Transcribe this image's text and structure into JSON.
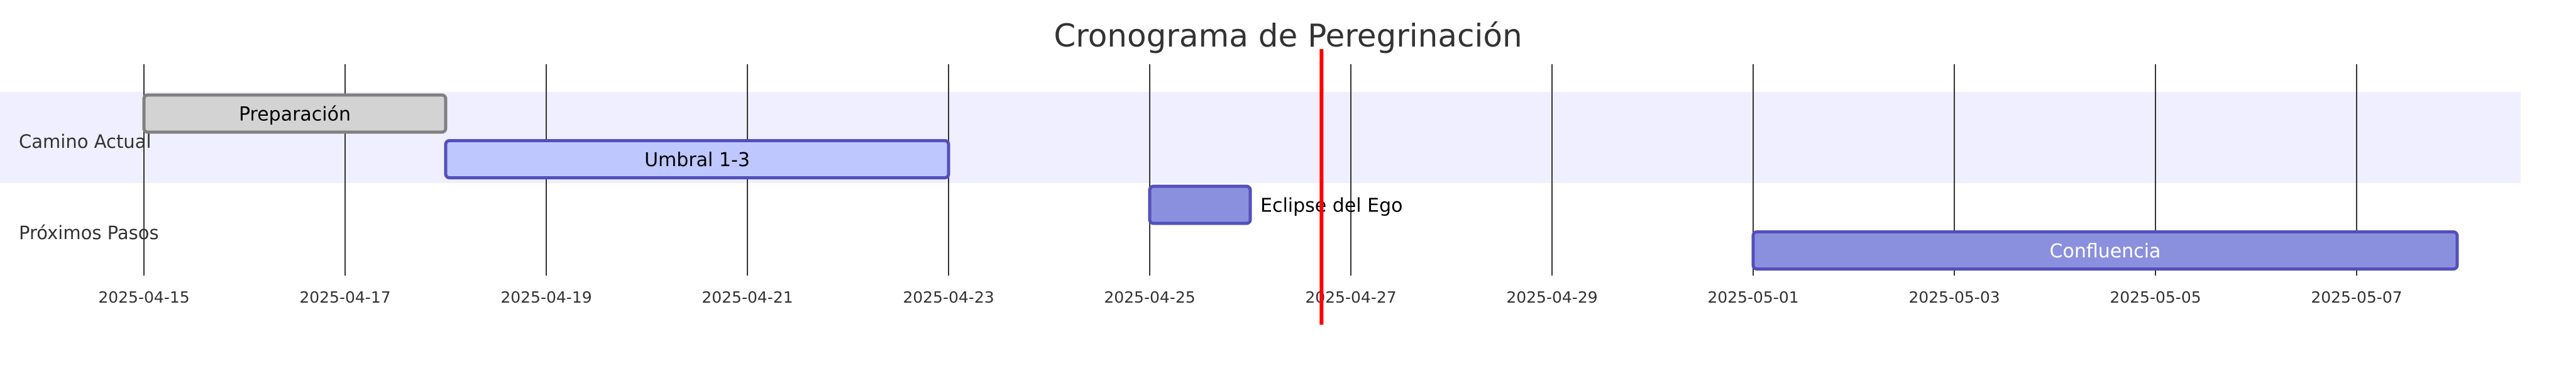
{
  "chart_data": {
    "type": "gantt",
    "title": "Cronograma de Peregrinación",
    "sections": [
      {
        "name": "Camino Actual",
        "tasks": [
          "Preparación",
          "Umbral 1-3"
        ]
      },
      {
        "name": "Próximos Pasos",
        "tasks": [
          "Eclipse del Ego",
          "Confluencia"
        ]
      }
    ],
    "tasks": [
      {
        "name": "Preparación",
        "section": "Camino Actual",
        "start": "2025-04-15",
        "end": "2025-04-18",
        "status": "done",
        "fill": "#d3d3d3",
        "stroke": "#808080",
        "label_color": "#000000",
        "label_position": "inside"
      },
      {
        "name": "Umbral 1-3",
        "section": "Camino Actual",
        "start": "2025-04-18",
        "end": "2025-04-23",
        "status": "active",
        "fill": "#bfc7ff",
        "stroke": "#534fbc",
        "label_color": "#000000",
        "label_position": "inside"
      },
      {
        "name": "Eclipse del Ego",
        "section": "Próximos Pasos",
        "start": "2025-04-25",
        "end": "2025-04-26",
        "status": "pending",
        "fill": "#8a90dd",
        "stroke": "#534fbc",
        "label_color": "#000000",
        "label_position": "outside-right"
      },
      {
        "name": "Confluencia",
        "section": "Próximos Pasos",
        "start": "2025-05-01",
        "end": "2025-05-08",
        "status": "pending",
        "fill": "#8a90dd",
        "stroke": "#534fbc",
        "label_color": "#ffffff",
        "label_position": "inside"
      }
    ],
    "x_ticks": [
      "2025-04-15",
      "2025-04-17",
      "2025-04-19",
      "2025-04-21",
      "2025-04-23",
      "2025-04-25",
      "2025-04-27",
      "2025-04-29",
      "2025-05-01",
      "2025-05-03",
      "2025-05-05",
      "2025-05-07"
    ],
    "xlim": [
      "2025-04-15",
      "2025-05-12"
    ],
    "today": "2025-04-26T17:00",
    "grid": true,
    "colors": {
      "section_band": "#efefff",
      "grid_line": "#333333",
      "today_line": "#ff0000"
    }
  }
}
